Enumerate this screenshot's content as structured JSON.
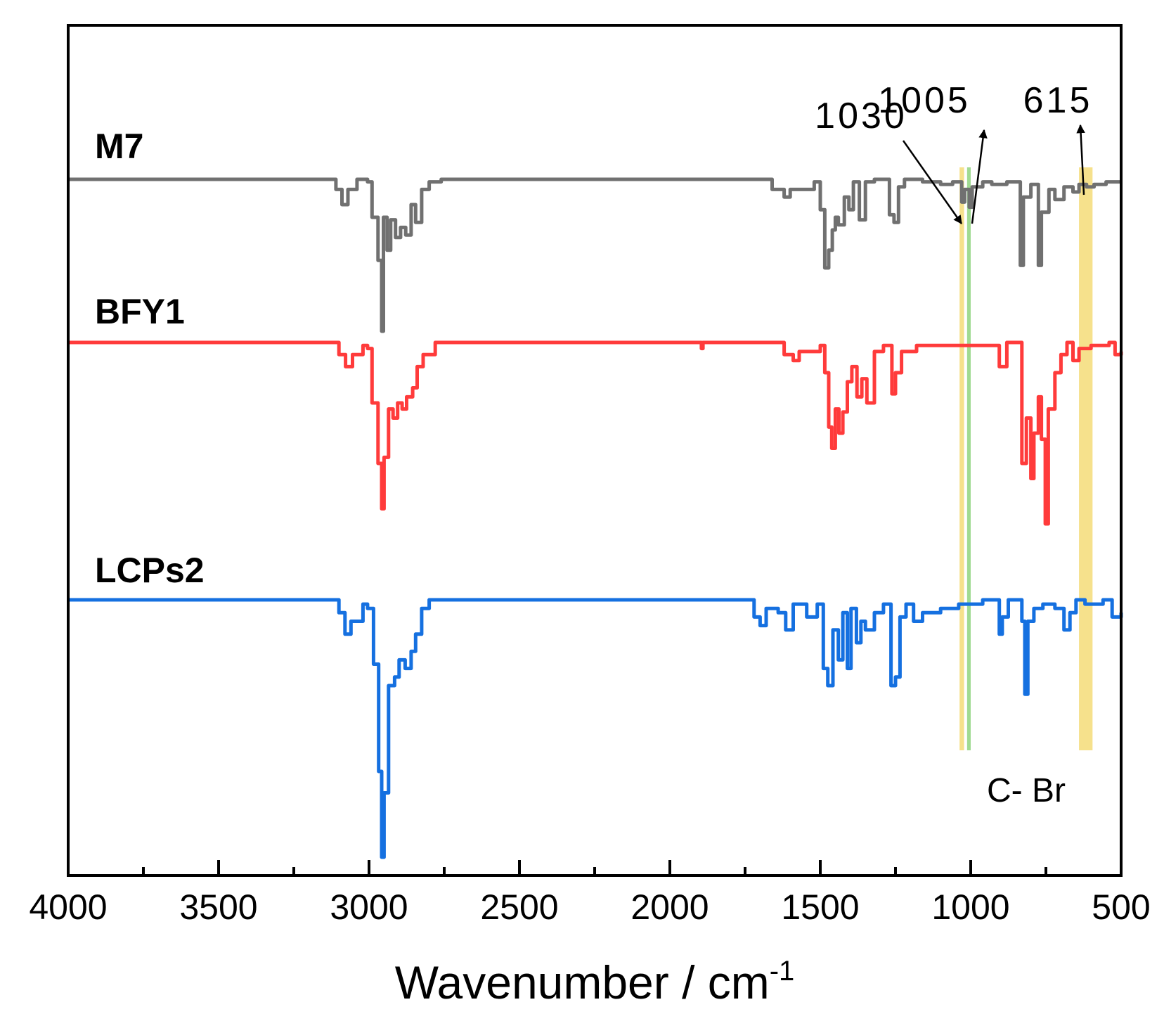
{
  "chart_data": {
    "type": "line",
    "title": "",
    "xlabel": "Wavenumber / cm",
    "xlabel_sup": "-1",
    "ylabel": "",
    "xlim": [
      4000,
      500
    ],
    "x_ticks": [
      4000,
      3500,
      3000,
      2500,
      2000,
      1500,
      1000,
      500
    ],
    "x_tick_labels": [
      "4000",
      "3500",
      "3000",
      "2500",
      "2000",
      "1500",
      "1000",
      "500"
    ],
    "y_unit": "transmittance (offset, arbitrary units)",
    "series": [
      {
        "name": "M7",
        "color": "#707070",
        "baseline": 100,
        "points": [
          [
            4000,
            100
          ],
          [
            3130,
            100
          ],
          [
            3110,
            96
          ],
          [
            3090,
            90
          ],
          [
            3070,
            96
          ],
          [
            3040,
            100
          ],
          [
            3005,
            99
          ],
          [
            2990,
            85
          ],
          [
            2970,
            68
          ],
          [
            2958,
            40
          ],
          [
            2952,
            85
          ],
          [
            2940,
            72
          ],
          [
            2928,
            84
          ],
          [
            2912,
            77
          ],
          [
            2895,
            81
          ],
          [
            2878,
            78
          ],
          [
            2860,
            90
          ],
          [
            2845,
            83
          ],
          [
            2825,
            96
          ],
          [
            2800,
            99
          ],
          [
            2760,
            100
          ],
          [
            1720,
            100
          ],
          [
            1660,
            96
          ],
          [
            1620,
            93
          ],
          [
            1600,
            96
          ],
          [
            1520,
            99
          ],
          [
            1500,
            88
          ],
          [
            1485,
            65
          ],
          [
            1472,
            72
          ],
          [
            1460,
            80
          ],
          [
            1450,
            85
          ],
          [
            1440,
            82
          ],
          [
            1420,
            93
          ],
          [
            1405,
            88
          ],
          [
            1390,
            99
          ],
          [
            1370,
            84
          ],
          [
            1350,
            99
          ],
          [
            1320,
            100
          ],
          [
            1270,
            86
          ],
          [
            1255,
            83
          ],
          [
            1240,
            97
          ],
          [
            1220,
            100
          ],
          [
            1160,
            99
          ],
          [
            1100,
            98
          ],
          [
            1060,
            99
          ],
          [
            1030,
            91
          ],
          [
            1020,
            96
          ],
          [
            1005,
            89
          ],
          [
            995,
            97
          ],
          [
            960,
            99
          ],
          [
            930,
            98
          ],
          [
            880,
            99
          ],
          [
            835,
            66
          ],
          [
            825,
            93
          ],
          [
            800,
            98
          ],
          [
            775,
            66
          ],
          [
            765,
            87
          ],
          [
            740,
            96
          ],
          [
            720,
            92
          ],
          [
            690,
            97
          ],
          [
            660,
            95
          ],
          [
            640,
            98
          ],
          [
            615,
            97
          ],
          [
            590,
            98
          ],
          [
            550,
            99
          ],
          [
            500,
            99
          ]
        ]
      },
      {
        "name": "BFY1",
        "color": "#ff3b3b",
        "baseline": 100,
        "points": [
          [
            4000,
            100
          ],
          [
            3130,
            100
          ],
          [
            3100,
            96
          ],
          [
            3078,
            92
          ],
          [
            3055,
            96
          ],
          [
            3020,
            99
          ],
          [
            3005,
            98
          ],
          [
            2990,
            80
          ],
          [
            2970,
            60
          ],
          [
            2958,
            45
          ],
          [
            2950,
            62
          ],
          [
            2935,
            78
          ],
          [
            2920,
            75
          ],
          [
            2905,
            80
          ],
          [
            2890,
            78
          ],
          [
            2875,
            82
          ],
          [
            2855,
            85
          ],
          [
            2840,
            92
          ],
          [
            2820,
            96
          ],
          [
            2780,
            100
          ],
          [
            1900,
            100
          ],
          [
            1895,
            98
          ],
          [
            1890,
            100
          ],
          [
            1650,
            100
          ],
          [
            1620,
            96
          ],
          [
            1590,
            94
          ],
          [
            1570,
            97
          ],
          [
            1500,
            99
          ],
          [
            1485,
            90
          ],
          [
            1472,
            72
          ],
          [
            1462,
            65
          ],
          [
            1450,
            78
          ],
          [
            1438,
            70
          ],
          [
            1425,
            77
          ],
          [
            1410,
            87
          ],
          [
            1395,
            92
          ],
          [
            1378,
            82
          ],
          [
            1362,
            88
          ],
          [
            1345,
            80
          ],
          [
            1320,
            97
          ],
          [
            1290,
            99
          ],
          [
            1262,
            83
          ],
          [
            1250,
            90
          ],
          [
            1230,
            97
          ],
          [
            1180,
            99
          ],
          [
            1100,
            99
          ],
          [
            1000,
            99
          ],
          [
            940,
            99
          ],
          [
            905,
            92
          ],
          [
            880,
            100
          ],
          [
            830,
            60
          ],
          [
            815,
            75
          ],
          [
            800,
            55
          ],
          [
            790,
            70
          ],
          [
            775,
            82
          ],
          [
            765,
            68
          ],
          [
            752,
            40
          ],
          [
            742,
            78
          ],
          [
            720,
            90
          ],
          [
            700,
            96
          ],
          [
            680,
            100
          ],
          [
            660,
            94
          ],
          [
            640,
            98
          ],
          [
            600,
            99
          ],
          [
            540,
            100
          ],
          [
            520,
            96
          ],
          [
            500,
            97
          ]
        ]
      },
      {
        "name": "LCPs2",
        "color": "#1570e0",
        "baseline": 100,
        "points": [
          [
            4000,
            100
          ],
          [
            3200,
            100
          ],
          [
            3100,
            97
          ],
          [
            3080,
            92
          ],
          [
            3060,
            95
          ],
          [
            3020,
            99
          ],
          [
            3005,
            98
          ],
          [
            2985,
            85
          ],
          [
            2968,
            60
          ],
          [
            2958,
            40
          ],
          [
            2950,
            55
          ],
          [
            2935,
            80
          ],
          [
            2915,
            82
          ],
          [
            2900,
            86
          ],
          [
            2880,
            84
          ],
          [
            2860,
            88
          ],
          [
            2845,
            92
          ],
          [
            2825,
            98
          ],
          [
            2800,
            100
          ],
          [
            1770,
            100
          ],
          [
            1720,
            96
          ],
          [
            1700,
            94
          ],
          [
            1680,
            98
          ],
          [
            1640,
            97
          ],
          [
            1615,
            93
          ],
          [
            1590,
            99
          ],
          [
            1545,
            96
          ],
          [
            1510,
            99
          ],
          [
            1490,
            84
          ],
          [
            1475,
            80
          ],
          [
            1458,
            93
          ],
          [
            1440,
            86
          ],
          [
            1425,
            97
          ],
          [
            1410,
            84
          ],
          [
            1398,
            98
          ],
          [
            1380,
            90
          ],
          [
            1365,
            95
          ],
          [
            1350,
            93
          ],
          [
            1320,
            97
          ],
          [
            1290,
            99
          ],
          [
            1265,
            80
          ],
          [
            1250,
            82
          ],
          [
            1235,
            96
          ],
          [
            1215,
            99
          ],
          [
            1190,
            95
          ],
          [
            1160,
            97
          ],
          [
            1100,
            98
          ],
          [
            1040,
            99
          ],
          [
            960,
            100
          ],
          [
            905,
            92
          ],
          [
            895,
            96
          ],
          [
            875,
            100
          ],
          [
            830,
            95
          ],
          [
            820,
            78
          ],
          [
            810,
            95
          ],
          [
            790,
            98
          ],
          [
            760,
            99
          ],
          [
            720,
            98
          ],
          [
            690,
            93
          ],
          [
            670,
            97
          ],
          [
            650,
            100
          ],
          [
            620,
            99
          ],
          [
            560,
            100
          ],
          [
            530,
            96
          ],
          [
            500,
            97
          ]
        ]
      }
    ],
    "highlights": [
      {
        "type": "band",
        "from": 1037,
        "to": 1022,
        "color": "#f5dc78"
      },
      {
        "type": "band",
        "from": 1012,
        "to": 1000,
        "color": "#8fd47f"
      },
      {
        "type": "band",
        "from": 640,
        "to": 595,
        "color": "#f5dc78"
      }
    ],
    "annotations": [
      {
        "text": "1030",
        "target_x": 1030,
        "target_series": "M7"
      },
      {
        "text": "1005",
        "target_x": 1005,
        "target_series": "M7"
      },
      {
        "text": "615",
        "target_x": 615,
        "target_series": "M7"
      },
      {
        "text": "C- Br",
        "region_x": 615
      }
    ]
  }
}
